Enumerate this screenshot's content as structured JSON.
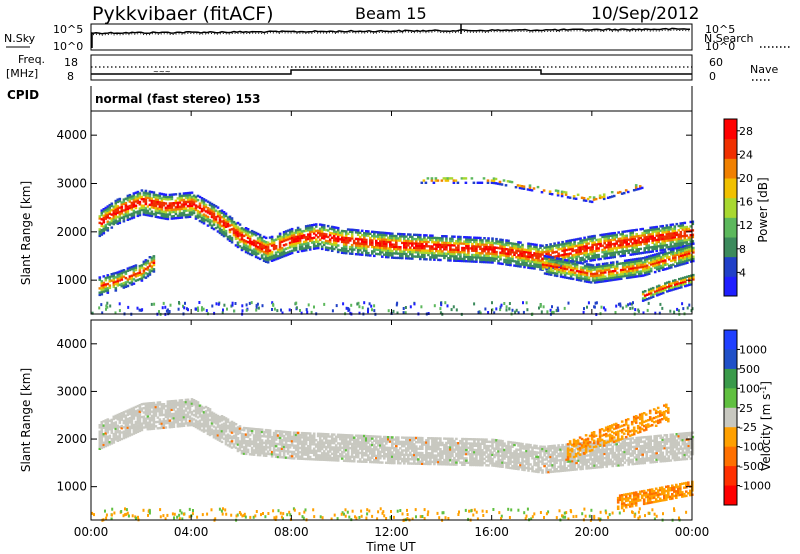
{
  "header": {
    "station": "Pykkvibaer (fitACF)",
    "beam": "Beam 15",
    "date": "10/Sep/2012"
  },
  "top_panels": {
    "nsky_label": "N.Sky",
    "nsearch_label": "N.Search",
    "freq_label": "Freq.",
    "freq_unit": "[MHz]",
    "nave_label": "Nave",
    "cpid_label": "CPID",
    "cpid_value": "normal (fast stereo) 153",
    "noise_ticks_left": [
      "10^5",
      "10^0"
    ],
    "noise_ticks_right": [
      "10^5",
      "10^0"
    ],
    "freq_ticks": [
      "18",
      "8"
    ],
    "nave_ticks": [
      "60",
      "0"
    ]
  },
  "colors": {
    "power_scale": [
      "#1f1fff",
      "#2040c8",
      "#3c8a5c",
      "#5cb85c",
      "#a8d830",
      "#f0c000",
      "#f08000",
      "#f03000",
      "#ff0000"
    ],
    "velocity_scale": [
      "#2040ff",
      "#2050c8",
      "#3a9a4a",
      "#60c040",
      "#c8c8c0",
      "#ffa000",
      "#ff7000",
      "#ff3000",
      "#ff0000"
    ]
  },
  "chart_data": [
    {
      "type": "heatmap",
      "title": "",
      "xlabel": "",
      "ylabel": "Slant Range [km]",
      "y_ticks": [
        "1000",
        "2000",
        "3000",
        "4000"
      ],
      "ylim": [
        300,
        4500
      ],
      "xlim": [
        "00:00",
        "24:00"
      ],
      "colorbar": {
        "label": "Power [dB]",
        "ticks": [
          "4",
          "8",
          "12",
          "16",
          "20",
          "24",
          "28"
        ],
        "range": [
          0,
          30
        ]
      },
      "series": [
        {
          "values": [
            [
              0.3,
              2200
            ],
            [
              1,
              2450
            ],
            [
              2,
              2650
            ],
            [
              3,
              2550
            ],
            [
              4,
              2600
            ],
            [
              5,
              2300
            ],
            [
              6,
              1900
            ],
            [
              7,
              1650
            ],
            [
              8,
              1850
            ],
            [
              9,
              1950
            ],
            [
              10,
              1850
            ],
            [
              12,
              1750
            ],
            [
              14,
              1700
            ],
            [
              16,
              1650
            ],
            [
              18,
              1500
            ],
            [
              20,
              1700
            ],
            [
              22,
              1850
            ],
            [
              24,
              2000
            ]
          ]
        },
        {
          "values": [
            [
              0.3,
              900
            ],
            [
              1,
              1000
            ],
            [
              2,
              1200
            ],
            [
              2.5,
              1400
            ]
          ]
        },
        {
          "values": [
            [
              18,
              1350
            ],
            [
              20,
              1150
            ],
            [
              22,
              1300
            ],
            [
              24,
              1600
            ]
          ]
        },
        {
          "values": [
            [
              22,
              700
            ],
            [
              23,
              900
            ],
            [
              24,
              1050
            ]
          ]
        },
        {
          "values": [
            [
              13,
              3100
            ],
            [
              16,
              3100
            ],
            [
              18,
              2900
            ],
            [
              20,
              2700
            ],
            [
              22,
              3000
            ]
          ]
        }
      ]
    },
    {
      "type": "heatmap",
      "title": "",
      "xlabel": "Time UT",
      "ylabel": "Slant Range [km]",
      "x_ticks": [
        "00:00",
        "04:00",
        "08:00",
        "12:00",
        "16:00",
        "20:00",
        "00:00"
      ],
      "y_ticks": [
        "1000",
        "2000",
        "3000",
        "4000"
      ],
      "ylim": [
        300,
        4500
      ],
      "xlim": [
        "00:00",
        "24:00"
      ],
      "colorbar": {
        "label": "Velocity [m s^-1]",
        "ticks": [
          "1000",
          "500",
          "100",
          "25",
          "-25",
          "-100",
          "-500",
          "-1000"
        ],
        "range": [
          -1200,
          1200
        ]
      },
      "series": [
        {
          "values": [
            [
              0.3,
              2100
            ],
            [
              2,
              2500
            ],
            [
              4,
              2600
            ],
            [
              6,
              2000
            ],
            [
              8,
              1900
            ],
            [
              12,
              1800
            ],
            [
              16,
              1750
            ],
            [
              18,
              1600
            ],
            [
              22,
              1800
            ],
            [
              24,
              1900
            ]
          ]
        },
        {
          "values": [
            [
              19,
              1800
            ],
            [
              21,
              2200
            ],
            [
              23,
              2600
            ]
          ]
        },
        {
          "values": [
            [
              21,
              700
            ],
            [
              24,
              1000
            ]
          ]
        }
      ]
    }
  ]
}
